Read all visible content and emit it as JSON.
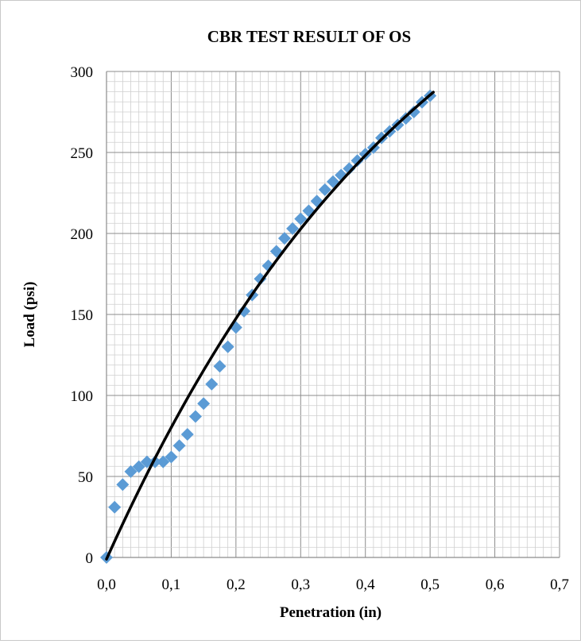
{
  "chart_data": {
    "type": "scatter",
    "title": "CBR TEST RESULT OF OS",
    "xlabel": "Penetration (in)",
    "ylabel": "Load (psi)",
    "xlim": [
      0,
      0.7
    ],
    "ylim": [
      0,
      300
    ],
    "x_ticks": [
      "0,0",
      "0,1",
      "0,2",
      "0,3",
      "0,4",
      "0,5",
      "0,6",
      "0,7"
    ],
    "y_ticks": [
      "0",
      "50",
      "100",
      "150",
      "200",
      "250",
      "300"
    ],
    "grid": true,
    "legend": "none",
    "marker_color": "#5b9bd5",
    "trendline_color": "#000000",
    "series": [
      {
        "marker": "diamond",
        "x": [
          0.0,
          0.0125,
          0.025,
          0.0375,
          0.05,
          0.0625,
          0.075,
          0.0875,
          0.1,
          0.1125,
          0.125,
          0.1375,
          0.15,
          0.1625,
          0.175,
          0.1875,
          0.2,
          0.2125,
          0.225,
          0.2375,
          0.25,
          0.2625,
          0.275,
          0.2875,
          0.3,
          0.3125,
          0.325,
          0.3375,
          0.35,
          0.3625,
          0.375,
          0.3875,
          0.4,
          0.4125,
          0.425,
          0.4375,
          0.45,
          0.4625,
          0.475,
          0.4875,
          0.5
        ],
        "y": [
          0,
          31,
          45,
          53,
          56,
          59,
          59,
          59,
          62,
          69,
          76,
          87,
          95,
          107,
          118,
          130,
          142,
          152,
          162,
          172,
          180,
          189,
          197,
          203,
          209,
          214,
          220,
          227,
          232,
          236,
          240,
          245,
          249,
          253,
          259,
          263,
          267,
          271,
          275,
          281,
          285
        ]
      }
    ],
    "trendline": {
      "type": "polynomial",
      "x": [
        0.0,
        0.05,
        0.1,
        0.15,
        0.2,
        0.25,
        0.3,
        0.35,
        0.4,
        0.45,
        0.5,
        0.505
      ],
      "y": [
        0,
        40,
        80,
        115,
        148,
        178,
        203,
        226,
        247,
        268,
        285,
        288
      ]
    }
  }
}
